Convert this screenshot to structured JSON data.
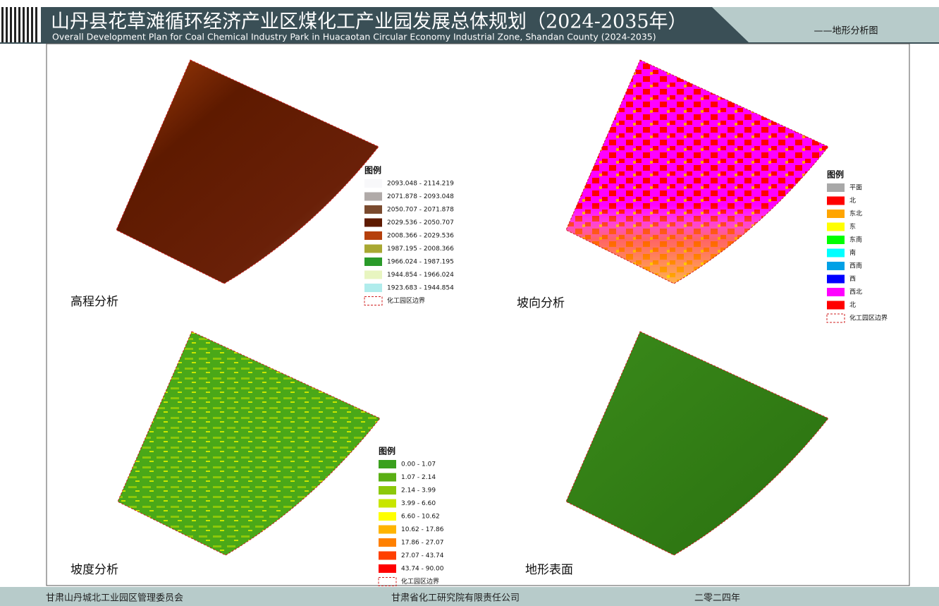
{
  "header": {
    "title": "山丹县花草滩循环经济产业区煤化工产业园发展总体规划（2024-2035年）",
    "subtitle": "Overall Development Plan for Coal Chemical Industry Park in Huacaotan Circular Economy Industrial Zone, Shandan County (2024-2035)",
    "tag": "——地形分析图"
  },
  "panels": [
    {
      "label": "高程分析",
      "legend": {
        "title": "图例",
        "items": [
          {
            "label": "2093.048 - 2114.219",
            "color": "#f8f8fa"
          },
          {
            "label": "2071.878 - 2093.048",
            "color": "#b0aaa8"
          },
          {
            "label": "2050.707 - 2071.878",
            "color": "#7a4a2e"
          },
          {
            "label": "2029.536 - 2050.707",
            "color": "#5e1a00"
          },
          {
            "label": "2008.366 - 2029.536",
            "color": "#b5400c"
          },
          {
            "label": "1987.195 - 2008.366",
            "color": "#a8a832"
          },
          {
            "label": "1966.024 - 1987.195",
            "color": "#2a9a2a"
          },
          {
            "label": "1944.854 - 1966.024",
            "color": "#e8f5c0"
          },
          {
            "label": "1923.683 - 1944.854",
            "color": "#b0ecec"
          }
        ],
        "boundary": "化工园区边界"
      }
    },
    {
      "label": "坡向分析",
      "legend": {
        "title": "图例",
        "items": [
          {
            "label": "平面",
            "color": "#a8a8a8"
          },
          {
            "label": "北",
            "color": "#ff0000"
          },
          {
            "label": "东北",
            "color": "#ffa500"
          },
          {
            "label": "东",
            "color": "#ffff00"
          },
          {
            "label": "东南",
            "color": "#00ff00"
          },
          {
            "label": "南",
            "color": "#00ffff"
          },
          {
            "label": "西南",
            "color": "#00a0e6"
          },
          {
            "label": "西",
            "color": "#0000ff"
          },
          {
            "label": "西北",
            "color": "#ff00ff"
          },
          {
            "label": "北",
            "color": "#ff0000"
          }
        ],
        "boundary": "化工园区边界"
      }
    },
    {
      "label": "坡度分析",
      "legend": {
        "title": "图例",
        "items": [
          {
            "label": "0.00 - 1.07",
            "color": "#3aa01e"
          },
          {
            "label": "1.07 - 2.14",
            "color": "#5aaf14"
          },
          {
            "label": "2.14 - 3.99",
            "color": "#8cc80a"
          },
          {
            "label": "3.99 - 6.60",
            "color": "#c8e600"
          },
          {
            "label": "6.60 - 10.62",
            "color": "#ffff00"
          },
          {
            "label": "10.62 - 17.86",
            "color": "#ffb400"
          },
          {
            "label": "17.86 - 27.07",
            "color": "#ff8000"
          },
          {
            "label": "27.07 - 43.74",
            "color": "#ff4000"
          },
          {
            "label": "43.74 - 90.00",
            "color": "#ff0000"
          }
        ],
        "boundary": "化工园区边界"
      }
    },
    {
      "label": "地形表面"
    }
  ],
  "footer": {
    "left": "甘肃山丹城北工业园区管理委员会",
    "center": "甘肃省化工研究院有限责任公司",
    "right": "二零二四年"
  }
}
